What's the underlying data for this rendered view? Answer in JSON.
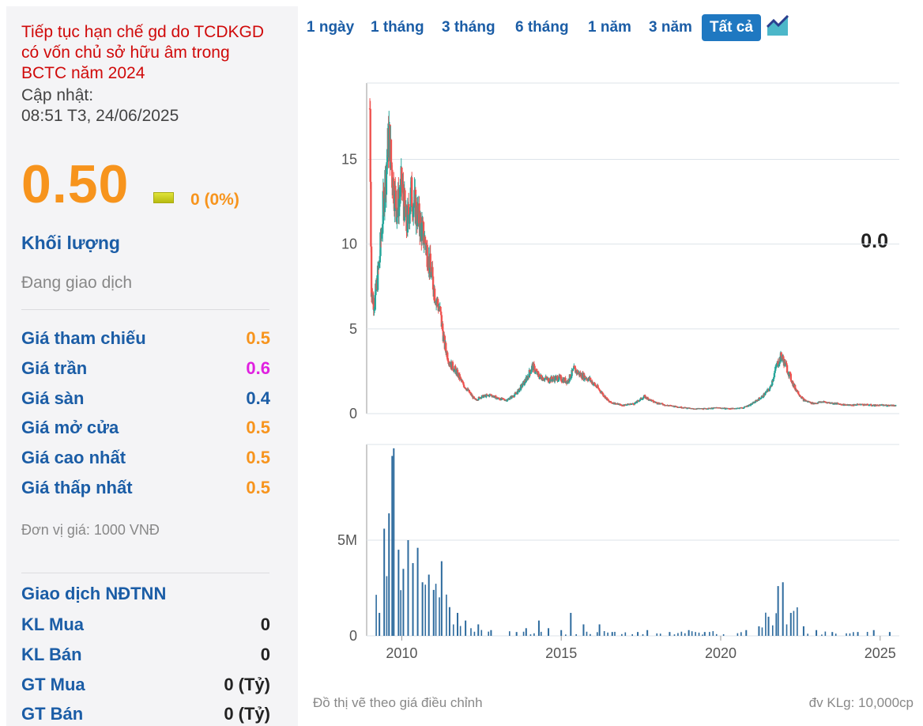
{
  "stock": {
    "notice": "Tiếp tục hạn chế gd do TCDKGD có vốn chủ sở hữu âm trong BCTC năm 2024",
    "update_label": "Cập nhật:",
    "update_time": "08:51 T3, 24/06/2025",
    "price": "0.50",
    "change": "0 (0%)",
    "volume_label": "Khối lượng",
    "volume_value": "0.0",
    "status": "Đang giao dịch"
  },
  "prices": [
    {
      "label": "Giá tham chiếu",
      "value": "0.5",
      "color": "#f7941d"
    },
    {
      "label": "Giá trần",
      "value": "0.6",
      "color": "#e020e0"
    },
    {
      "label": "Giá sàn",
      "value": "0.4",
      "color": "#1b5da6"
    },
    {
      "label": "Giá mở cửa",
      "value": "0.5",
      "color": "#f7941d"
    },
    {
      "label": "Giá cao nhất",
      "value": "0.5",
      "color": "#f7941d"
    },
    {
      "label": "Giá thấp nhất",
      "value": "0.5",
      "color": "#f7941d"
    }
  ],
  "unit": "Đơn vị giá: 1000 VNĐ",
  "foreign": {
    "title": "Giao dịch NĐTNN",
    "rows": [
      {
        "label": "KL Mua",
        "value": "0"
      },
      {
        "label": "KL Bán",
        "value": "0"
      },
      {
        "label": "GT Mua",
        "value": "0 (Tỷ)"
      },
      {
        "label": "GT Bán",
        "value": "0 (Tỷ)"
      }
    ]
  },
  "tabs": [
    "1 ngày",
    "1 tháng",
    "3 tháng",
    "6 tháng",
    "1 năm",
    "3 năm",
    "Tất cả"
  ],
  "active_tab": 6,
  "chart_icon": "area-chart-icon",
  "footer": {
    "note": "Đồ thị vẽ theo giá điều chỉnh",
    "unit": "đv KLg: 10,000cp"
  },
  "colors": {
    "up": "#26a69a",
    "down": "#ef5350",
    "volume": "#2e6b9e",
    "accent": "#1f78c1"
  },
  "chart_data": {
    "type": "candlestick",
    "price_axis": {
      "ticks": [
        0,
        5,
        10,
        15
      ],
      "ylim": [
        0,
        19.5
      ]
    },
    "volume_axis": {
      "ticks": [
        0,
        "5M"
      ],
      "ylim": [
        0,
        10
      ]
    },
    "x_ticks": [
      "2010",
      "2015",
      "2020",
      "2025"
    ],
    "xlim": [
      2008.9,
      2025.6
    ],
    "price_series": [
      [
        2009.0,
        18
      ],
      [
        2009.05,
        7
      ],
      [
        2009.15,
        6.5
      ],
      [
        2009.3,
        9
      ],
      [
        2009.45,
        13
      ],
      [
        2009.6,
        16.5
      ],
      [
        2009.7,
        14
      ],
      [
        2009.85,
        12
      ],
      [
        2010.0,
        13.5
      ],
      [
        2010.15,
        11
      ],
      [
        2010.3,
        13
      ],
      [
        2010.45,
        12
      ],
      [
        2010.6,
        11
      ],
      [
        2010.75,
        10
      ],
      [
        2010.9,
        8.5
      ],
      [
        2011.05,
        7
      ],
      [
        2011.2,
        6
      ],
      [
        2011.35,
        4
      ],
      [
        2011.5,
        3
      ],
      [
        2011.7,
        2.5
      ],
      [
        2011.9,
        1.8
      ],
      [
        2012.1,
        1.3
      ],
      [
        2012.3,
        0.8
      ],
      [
        2012.5,
        1.0
      ],
      [
        2012.8,
        1.1
      ],
      [
        2013.0,
        0.9
      ],
      [
        2013.3,
        0.8
      ],
      [
        2013.6,
        1.2
      ],
      [
        2013.9,
        2.0
      ],
      [
        2014.1,
        2.8
      ],
      [
        2014.3,
        2.2
      ],
      [
        2014.6,
        2.0
      ],
      [
        2014.9,
        2.1
      ],
      [
        2015.2,
        1.9
      ],
      [
        2015.4,
        2.6
      ],
      [
        2015.6,
        2.3
      ],
      [
        2015.9,
        2.0
      ],
      [
        2016.2,
        1.4
      ],
      [
        2016.5,
        0.7
      ],
      [
        2016.9,
        0.5
      ],
      [
        2017.3,
        0.6
      ],
      [
        2017.6,
        1.0
      ],
      [
        2017.9,
        0.7
      ],
      [
        2018.3,
        0.5
      ],
      [
        2018.7,
        0.4
      ],
      [
        2019.1,
        0.3
      ],
      [
        2019.5,
        0.3
      ],
      [
        2019.9,
        0.35
      ],
      [
        2020.3,
        0.3
      ],
      [
        2020.7,
        0.35
      ],
      [
        2021.0,
        0.6
      ],
      [
        2021.3,
        1.0
      ],
      [
        2021.55,
        1.5
      ],
      [
        2021.75,
        2.8
      ],
      [
        2021.9,
        3.4
      ],
      [
        2022.05,
        2.8
      ],
      [
        2022.3,
        1.6
      ],
      [
        2022.6,
        0.8
      ],
      [
        2022.9,
        0.6
      ],
      [
        2023.2,
        0.7
      ],
      [
        2023.6,
        0.6
      ],
      [
        2024.0,
        0.5
      ],
      [
        2024.4,
        0.55
      ],
      [
        2024.8,
        0.5
      ],
      [
        2025.2,
        0.5
      ],
      [
        2025.5,
        0.5
      ]
    ],
    "volume_series": [
      [
        2009.3,
        1.2
      ],
      [
        2009.45,
        5.6
      ],
      [
        2009.6,
        6.4
      ],
      [
        2009.7,
        9.4
      ],
      [
        2009.75,
        9.8
      ],
      [
        2009.9,
        4.5
      ],
      [
        2010.05,
        3.5
      ],
      [
        2010.2,
        5.0
      ],
      [
        2010.35,
        3.8
      ],
      [
        2010.5,
        4.6
      ],
      [
        2010.65,
        2.8
      ],
      [
        2010.85,
        3.2
      ],
      [
        2011.0,
        2.4
      ],
      [
        2011.25,
        3.9
      ],
      [
        2011.5,
        1.5
      ],
      [
        2011.75,
        1.2
      ],
      [
        2012.0,
        0.8
      ],
      [
        2012.4,
        0.6
      ],
      [
        2012.8,
        0.3
      ],
      [
        2013.6,
        0.2
      ],
      [
        2013.9,
        0.4
      ],
      [
        2014.3,
        0.8
      ],
      [
        2014.6,
        0.4
      ],
      [
        2015.0,
        0.3
      ],
      [
        2015.3,
        1.2
      ],
      [
        2015.7,
        0.6
      ],
      [
        2016.2,
        0.6
      ],
      [
        2016.6,
        0.2
      ],
      [
        2017.4,
        0.2
      ],
      [
        2017.7,
        0.3
      ],
      [
        2018.4,
        0.2
      ],
      [
        2019.0,
        0.3
      ],
      [
        2019.5,
        0.2
      ],
      [
        2020.8,
        0.3
      ],
      [
        2021.2,
        0.5
      ],
      [
        2021.5,
        1.0
      ],
      [
        2021.8,
        2.6
      ],
      [
        2021.95,
        2.8
      ],
      [
        2022.2,
        1.2
      ],
      [
        2022.6,
        0.5
      ],
      [
        2023.0,
        0.3
      ],
      [
        2023.5,
        0.2
      ],
      [
        2024.3,
        0.2
      ],
      [
        2024.8,
        0.3
      ],
      [
        2025.3,
        0.2
      ]
    ]
  }
}
